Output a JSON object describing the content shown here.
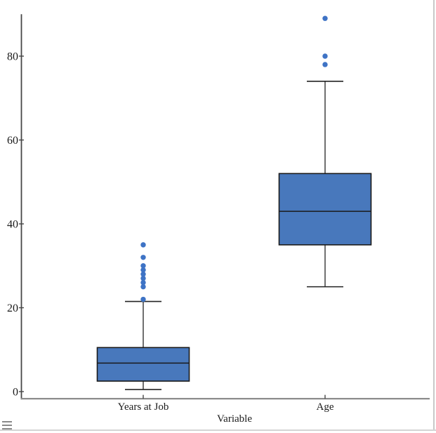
{
  "window": {
    "background": "#ffffff",
    "right_border_color": "#c8c8c8",
    "bottom_border_color": "#d4d4d4"
  },
  "icons": {
    "report_menu": "hamburger-menu-icon"
  },
  "chart_data": {
    "type": "boxplot",
    "title": "",
    "xlabel": "Variable",
    "ylabel": "",
    "categories": [
      "Years at Job",
      "Age"
    ],
    "y_ticks": [
      0,
      20,
      40,
      60,
      80
    ],
    "ylim": [
      -1.7,
      90
    ],
    "grid": false,
    "legend": false,
    "series": [
      {
        "name": "Years at Job",
        "whisker_low": 0.5,
        "q1": 2.5,
        "median": 6.8,
        "q3": 10.5,
        "whisker_high": 21.5,
        "outliers": [
          22,
          25,
          26,
          27,
          28,
          29,
          30,
          32,
          35
        ]
      },
      {
        "name": "Age",
        "whisker_low": 25,
        "q1": 35,
        "median": 43,
        "q3": 52,
        "whisker_high": 74,
        "outliers": [
          78,
          80,
          89
        ]
      }
    ]
  },
  "colors": {
    "box_fill": "#4878bc",
    "box_stroke": "#1a1a1a",
    "median_line": "#1a1a1a",
    "whisker": "#222222",
    "outlier_fill": "#3e73c5",
    "y_axis": "#474747",
    "x_axis": "#8c8c8c",
    "tick": "#474747",
    "text": "#1a1a1a",
    "menu_icon": "#8a8a8a"
  }
}
